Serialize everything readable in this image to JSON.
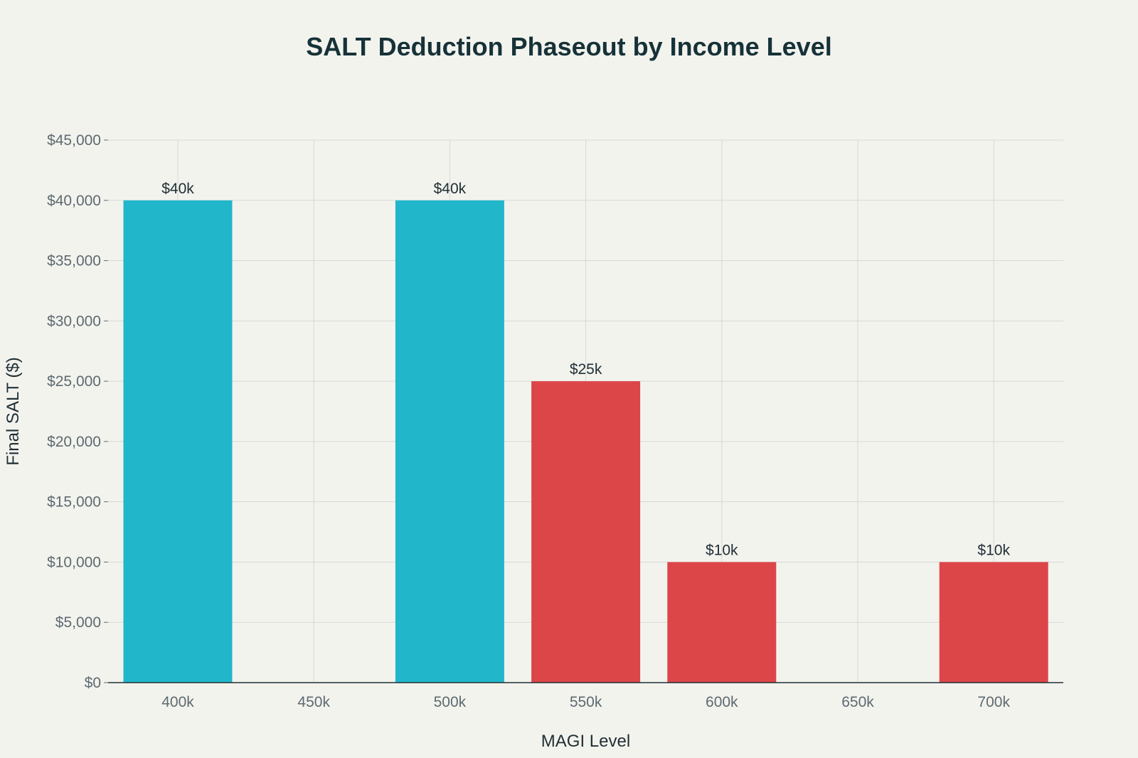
{
  "chart_data": {
    "type": "bar",
    "title": "SALT Deduction Phaseout by Income Level",
    "xlabel": "MAGI Level",
    "ylabel": "Final SALT ($)",
    "categories": [
      "400k",
      "450k",
      "500k",
      "550k",
      "600k",
      "650k",
      "700k"
    ],
    "values": [
      40000,
      null,
      40000,
      25000,
      10000,
      null,
      10000
    ],
    "data_labels": [
      "$40k",
      "",
      "$40k",
      "$25k",
      "$10k",
      "",
      "$10k"
    ],
    "bar_colors": [
      "#22b6cb",
      null,
      "#22b6cb",
      "#dc4648",
      "#dc4648",
      null,
      "#dc4648"
    ],
    "ylim": [
      0,
      45000
    ],
    "y_ticks": [
      0,
      5000,
      10000,
      15000,
      20000,
      25000,
      30000,
      35000,
      40000,
      45000
    ],
    "y_tick_labels": [
      "$0",
      "$5,000",
      "$10,000",
      "$15,000",
      "$20,000",
      "$25,000",
      "$30,000",
      "$35,000",
      "$40,000",
      "$45,000"
    ],
    "grid": true
  }
}
